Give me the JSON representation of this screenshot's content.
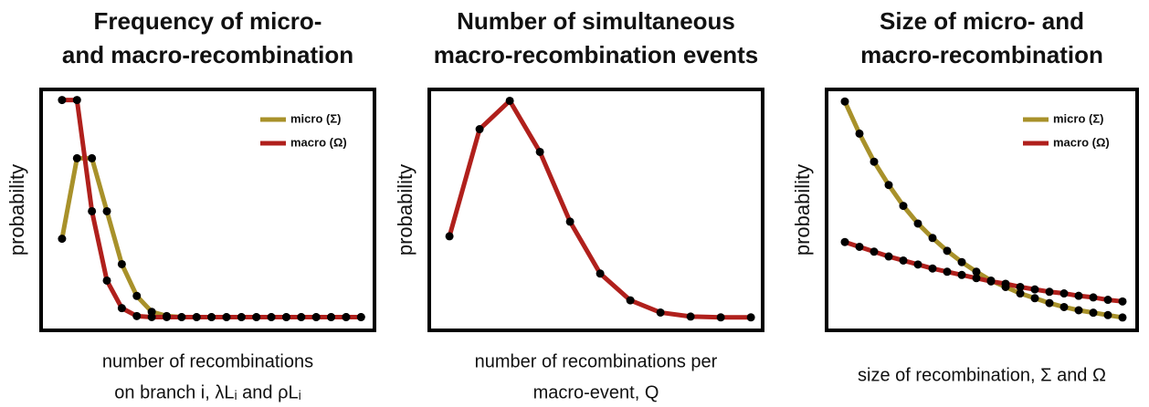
{
  "chart_data": [
    {
      "type": "line",
      "title": [
        "Frequency of micro-",
        "and macro-recombination"
      ],
      "x_label": [
        "number of recombinations",
        "on branch i, λLᵢ and ρLᵢ"
      ],
      "y_label": "probability",
      "x": [
        0,
        1,
        2,
        3,
        4,
        5,
        6,
        7,
        8,
        9,
        10,
        11,
        12,
        13,
        14,
        15,
        16,
        17,
        18,
        19,
        20
      ],
      "xlim": [
        -1.4,
        20.9
      ],
      "ylim": [
        -0.025,
        0.43
      ],
      "legend": "upper right",
      "series": [
        {
          "name": "micro (Σ)",
          "color": "#a8912a",
          "values": [
            0.148,
            0.3,
            0.3,
            0.2,
            0.1,
            0.04,
            0.01,
            0.002,
            0,
            0,
            0,
            0,
            0,
            0,
            0,
            0,
            0,
            0,
            0,
            0,
            0
          ]
        },
        {
          "name": "macro (Ω)",
          "color": "#b0201c",
          "values": [
            0.41,
            0.41,
            0.2,
            0.069,
            0.017,
            0.002,
            0,
            0,
            0,
            0,
            0,
            0,
            0,
            0,
            0,
            0,
            0,
            0,
            0,
            0,
            0
          ]
        }
      ]
    },
    {
      "type": "line",
      "title": [
        "Number of simultaneous",
        "macro-recombination events"
      ],
      "x_label": [
        "number of recombinations per",
        "macro-event, Q"
      ],
      "y_label": "probability",
      "x": [
        0,
        1,
        2,
        3,
        4,
        5,
        6,
        7,
        8,
        9,
        10
      ],
      "xlim": [
        -0.67,
        10.39
      ],
      "ylim": [
        -0.016,
        0.281
      ],
      "series": [
        {
          "color": "#b0201c",
          "values": [
            0.1,
            0.232,
            0.267,
            0.204,
            0.118,
            0.054,
            0.021,
            0.006,
            0.001,
            0,
            0
          ]
        }
      ]
    },
    {
      "type": "line",
      "title": [
        "Size of micro- and",
        "macro-recombination"
      ],
      "x_label": [
        "size of recombination, Σ and Ω"
      ],
      "y_label": "probability",
      "x": [
        0,
        1,
        2,
        3,
        4,
        5,
        6,
        7,
        8,
        9,
        10,
        11,
        12,
        13,
        14,
        15,
        16,
        17,
        18,
        19
      ],
      "xlim": [
        -1.25,
        20
      ],
      "ylim": [
        0,
        0.3
      ],
      "legend": "upper right",
      "series": [
        {
          "name": "micro (Σ)",
          "color": "#a8912a",
          "values": [
            0.285,
            0.245,
            0.21,
            0.181,
            0.155,
            0.133,
            0.115,
            0.099,
            0.085,
            0.073,
            0.062,
            0.054,
            0.046,
            0.04,
            0.034,
            0.029,
            0.025,
            0.022,
            0.019,
            0.016
          ]
        },
        {
          "name": "macro (Ω)",
          "color": "#b0201c",
          "values": [
            0.11,
            0.104,
            0.098,
            0.092,
            0.087,
            0.082,
            0.077,
            0.073,
            0.069,
            0.065,
            0.061,
            0.058,
            0.054,
            0.051,
            0.048,
            0.046,
            0.043,
            0.041,
            0.038,
            0.036
          ]
        }
      ]
    }
  ]
}
